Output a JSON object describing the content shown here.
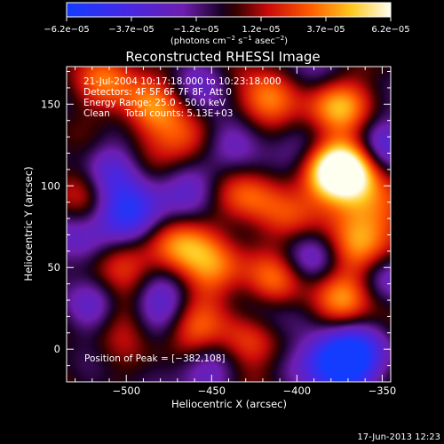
{
  "chart_data": {
    "type": "heatmap",
    "title": "Reconstructed RHESSI Image",
    "xlabel": "Heliocentric X (arcsec)",
    "ylabel": "Heliocentric Y (arcsec)",
    "xlim": [
      -535,
      -345
    ],
    "ylim": [
      -20,
      173
    ],
    "xticks": [
      -500,
      -450,
      -400,
      -350
    ],
    "xtick_labels": [
      "−500",
      "−450",
      "−400",
      "−350"
    ],
    "yticks": [
      0,
      50,
      100,
      150
    ],
    "ytick_labels": [
      "0",
      "50",
      "100",
      "150"
    ],
    "colorbar": {
      "min": -6.2e-05,
      "max": 6.2e-05,
      "tick_labels": [
        "−6.2e−05",
        "−3.7e−05",
        "−1.2e−05",
        "1.2e−05",
        "3.7e−05",
        "6.2e−05"
      ],
      "units_label": "(photons cm",
      "units_exp1": "−2",
      "units_mid": " s",
      "units_exp2": "−1",
      "units_mid2": " asec",
      "units_exp3": "−2",
      "units_end": ")"
    },
    "annotations": [
      "21-Jul-2004 10:17:18.000 to 10:23:18.000",
      "Detectors: 4F 5F 6F 7F 8F, Att 0",
      "Energy Range: 25.0 - 50.0 keV",
      "Clean     Total counts: 5.13E+03"
    ],
    "peak_label": "Position of Peak = [−382,108]",
    "peak": [
      -382,
      108
    ],
    "hot_spots": [
      {
        "x": -382,
        "y": 108,
        "v": 1.0
      },
      {
        "x": -368,
        "y": 110,
        "v": 0.85
      },
      {
        "x": -418,
        "y": 152,
        "v": 0.75
      },
      {
        "x": -378,
        "y": 148,
        "v": 0.8
      },
      {
        "x": -465,
        "y": 128,
        "v": 0.6
      },
      {
        "x": -430,
        "y": 95,
        "v": 0.55
      },
      {
        "x": -470,
        "y": 62,
        "v": 0.7
      },
      {
        "x": -448,
        "y": 48,
        "v": 0.55
      },
      {
        "x": -505,
        "y": 55,
        "v": 0.45
      },
      {
        "x": -412,
        "y": 40,
        "v": 0.55
      },
      {
        "x": -362,
        "y": 60,
        "v": 0.65
      },
      {
        "x": -372,
        "y": 30,
        "v": 0.6
      },
      {
        "x": -520,
        "y": 100,
        "v": 0.5
      },
      {
        "x": -460,
        "y": 10,
        "v": 0.55
      },
      {
        "x": -430,
        "y": 5,
        "v": 0.5
      },
      {
        "x": -505,
        "y": 20,
        "v": 0.4
      },
      {
        "x": -510,
        "y": 165,
        "v": 0.5
      },
      {
        "x": -355,
        "y": 85,
        "v": 0.55
      },
      {
        "x": -400,
        "y": 80,
        "v": 0.35
      },
      {
        "x": -485,
        "y": 148,
        "v": 0.5
      }
    ],
    "cold_spots": [
      {
        "x": -498,
        "y": 82,
        "v": -1.0
      },
      {
        "x": -512,
        "y": 108,
        "v": -0.7
      },
      {
        "x": -480,
        "y": 30,
        "v": -0.6
      },
      {
        "x": -380,
        "y": -8,
        "v": -0.95
      },
      {
        "x": -365,
        "y": -5,
        "v": -0.85
      },
      {
        "x": -460,
        "y": 100,
        "v": -0.5
      },
      {
        "x": -440,
        "y": 130,
        "v": -0.5
      },
      {
        "x": -400,
        "y": 120,
        "v": -0.5
      },
      {
        "x": -455,
        "y": -12,
        "v": -0.55
      },
      {
        "x": -350,
        "y": 125,
        "v": -0.55
      },
      {
        "x": -390,
        "y": 55,
        "v": -0.45
      },
      {
        "x": -345,
        "y": 45,
        "v": -0.5
      },
      {
        "x": -520,
        "y": 25,
        "v": -0.5
      },
      {
        "x": -420,
        "y": 20,
        "v": -0.4
      },
      {
        "x": -530,
        "y": 65,
        "v": -0.45
      },
      {
        "x": -455,
        "y": 160,
        "v": -0.35
      },
      {
        "x": -395,
        "y": 165,
        "v": -0.35
      }
    ]
  },
  "footer": {
    "date_stamp": "17-Jun-2013 12:23"
  }
}
